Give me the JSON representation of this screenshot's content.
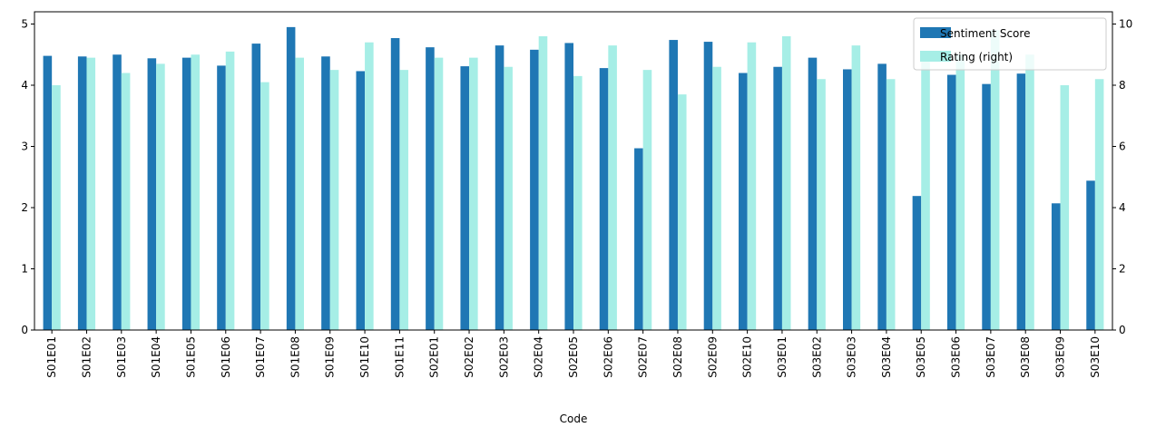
{
  "chart_data": {
    "type": "bar",
    "xlabel": "Code",
    "ylabel": "",
    "ylabel_right": "",
    "ylim": [
      0,
      5.2
    ],
    "ylim_right": [
      0,
      10.4
    ],
    "yticks": [
      0,
      1,
      2,
      3,
      4,
      5
    ],
    "yticks_right": [
      0,
      2,
      4,
      6,
      8,
      10
    ],
    "grid": false,
    "legend_position": "top-right",
    "categories": [
      "S01E01",
      "S01E02",
      "S01E03",
      "S01E04",
      "S01E05",
      "S01E06",
      "S01E07",
      "S01E08",
      "S01E09",
      "S01E10",
      "S01E11",
      "S02E01",
      "S02E02",
      "S02E03",
      "S02E04",
      "S02E05",
      "S02E06",
      "S02E07",
      "S02E08",
      "S02E09",
      "S02E10",
      "S03E01",
      "S03E02",
      "S03E03",
      "S03E04",
      "S03E05",
      "S03E06",
      "S03E07",
      "S03E08",
      "S03E09",
      "S03E10"
    ],
    "series": [
      {
        "name": "Sentiment Score",
        "axis": "left",
        "color": "#1f77b4",
        "values": [
          4.48,
          4.47,
          4.5,
          4.44,
          4.45,
          4.32,
          4.68,
          4.95,
          4.47,
          4.23,
          4.77,
          4.62,
          4.31,
          4.65,
          4.58,
          4.69,
          4.28,
          2.97,
          4.74,
          4.71,
          4.2,
          4.3,
          4.45,
          4.26,
          4.35,
          2.19,
          4.17,
          4.02,
          4.19,
          2.07,
          2.44
        ]
      },
      {
        "name": "Rating (right)",
        "axis": "right",
        "color": "#a6eee6",
        "values": [
          8.0,
          8.9,
          8.4,
          8.7,
          9.0,
          9.1,
          8.1,
          8.9,
          8.5,
          9.4,
          8.5,
          8.9,
          8.9,
          8.6,
          9.6,
          8.3,
          9.3,
          8.5,
          7.7,
          8.6,
          9.4,
          9.6,
          8.2,
          9.3,
          8.2,
          9.0,
          9.0,
          9.8,
          9.0,
          8.0,
          8.2
        ]
      }
    ]
  }
}
